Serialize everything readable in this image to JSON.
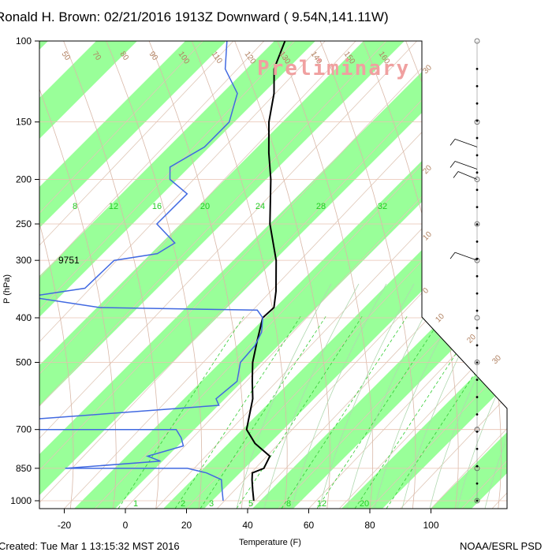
{
  "title": "Ronald H. Brown: 02/21/2016 1913Z Downward ( 9.54N,141.11W)",
  "watermark": "Preliminary",
  "footer_left": "Created: Tue Mar  1 13:15:32 MST 2016",
  "footer_right": "NOAA/ESRL PSD",
  "colors": {
    "band": "#99ff99",
    "temperature": "#000000",
    "dewpoint": "#4169e1",
    "isotherm": "#e0c8b8",
    "mixing_ratio": "#33cc33",
    "saturation_adiabat": "#b0d8b0",
    "height_label": "#000000"
  },
  "chart_data": {
    "type": "line",
    "title": "Ronald H. Brown: 02/21/2016 1913Z Downward ( 9.54N,141.11W)",
    "xlabel": "Temperature (F)",
    "ylabel": "P (hPa)",
    "x_ticks": [
      "-20",
      "0",
      "20",
      "40",
      "60",
      "80",
      "100"
    ],
    "y_ticks": [
      "100",
      "150",
      "200",
      "250",
      "300",
      "400",
      "500",
      "700",
      "850",
      "1000"
    ],
    "y_scale": "log",
    "ylim": [
      1000,
      100
    ],
    "height_annotation": {
      "pressure": 300,
      "label": "9751"
    },
    "band_labels": [
      "8",
      "12",
      "16",
      "20",
      "24",
      "28",
      "32"
    ],
    "mixing_ratio_labels": [
      "1",
      "2",
      "3",
      "5",
      "8",
      "12",
      "20"
    ],
    "dry_adiabat_labels": [
      "50",
      "70",
      "80",
      "90",
      "100",
      "110",
      "120",
      "130",
      "140",
      "150",
      "160"
    ],
    "skew_labels": [
      "30",
      "20",
      "10",
      "0",
      "10",
      "20",
      "30"
    ],
    "series": [
      {
        "name": "temperature",
        "points": [
          [
            -23,
            100
          ],
          [
            -22,
            115
          ],
          [
            -18,
            130
          ],
          [
            -15,
            150
          ],
          [
            -10,
            175
          ],
          [
            -5,
            200
          ],
          [
            2,
            250
          ],
          [
            10,
            300
          ],
          [
            15,
            350
          ],
          [
            17,
            380
          ],
          [
            15,
            400
          ],
          [
            17,
            450
          ],
          [
            19,
            500
          ],
          [
            22,
            550
          ],
          [
            25,
            600
          ],
          [
            28,
            700
          ],
          [
            33,
            750
          ],
          [
            40,
            800
          ],
          [
            40,
            850
          ],
          [
            37,
            870
          ],
          [
            38,
            900
          ],
          [
            40,
            950
          ],
          [
            42,
            1000
          ]
        ]
      },
      {
        "name": "dewpoint",
        "points": [
          [
            -42,
            100
          ],
          [
            -38,
            115
          ],
          [
            -30,
            130
          ],
          [
            -28,
            150
          ],
          [
            -32,
            170
          ],
          [
            -40,
            188
          ],
          [
            -38,
            200
          ],
          [
            -30,
            215
          ],
          [
            -35,
            250
          ],
          [
            -26,
            275
          ],
          [
            -30,
            290
          ],
          [
            -43,
            300
          ],
          [
            -48,
            345
          ],
          [
            -65,
            360
          ],
          [
            -40,
            380
          ],
          [
            12,
            385
          ],
          [
            15,
            400
          ],
          [
            17,
            430
          ],
          [
            17,
            460
          ],
          [
            15,
            500
          ],
          [
            17,
            550
          ],
          [
            13,
            600
          ],
          [
            15,
            620
          ],
          [
            -50,
            670
          ],
          [
            -45,
            700
          ],
          [
            5,
            700
          ],
          [
            8,
            730
          ],
          [
            10,
            760
          ],
          [
            0,
            800
          ],
          [
            5,
            820
          ],
          [
            -25,
            850
          ],
          [
            15,
            850
          ],
          [
            22,
            870
          ],
          [
            28,
            900
          ],
          [
            30,
            950
          ],
          [
            32,
            1000
          ]
        ]
      }
    ]
  }
}
